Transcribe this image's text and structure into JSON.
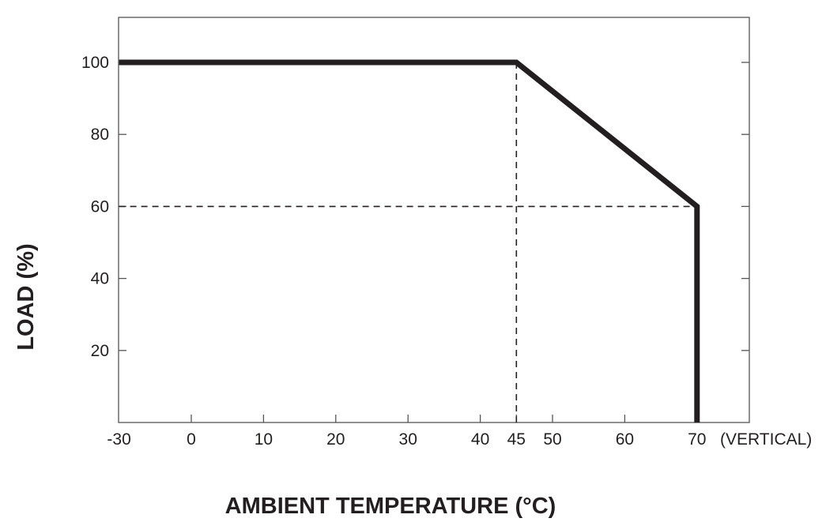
{
  "chart_data": {
    "type": "line",
    "title": "",
    "xlabel": "AMBIENT TEMPERATURE (°C)",
    "ylabel": "LOAD (%)",
    "x_axis_note": "(VERTICAL)",
    "xlim": [
      -30,
      77.3
    ],
    "ylim": [
      0,
      112.5
    ],
    "x_axis_break": "-30 shown one interval left of 0",
    "xticks": [
      -30,
      0,
      10,
      20,
      30,
      40,
      45,
      50,
      60,
      70
    ],
    "xtick_labels": [
      "-30",
      "0",
      "10",
      "20",
      "30",
      "40",
      "45",
      "50",
      "60",
      "70"
    ],
    "yticks": [
      20,
      40,
      60,
      80,
      100
    ],
    "ytick_labels": [
      "20",
      "40",
      "60",
      "80",
      "100"
    ],
    "grid": false,
    "series": [
      {
        "style": "solid",
        "color": "#231f20",
        "x": [
          -30,
          45,
          70,
          70
        ],
        "y": [
          100,
          100,
          60,
          0
        ]
      }
    ],
    "reference_lines": [
      {
        "style": "dashed",
        "color": "#231f20",
        "x": [
          45,
          45
        ],
        "y": [
          100,
          0
        ]
      },
      {
        "style": "dashed",
        "color": "#231f20",
        "x": [
          -30,
          70
        ],
        "y": [
          60,
          60
        ]
      }
    ]
  }
}
